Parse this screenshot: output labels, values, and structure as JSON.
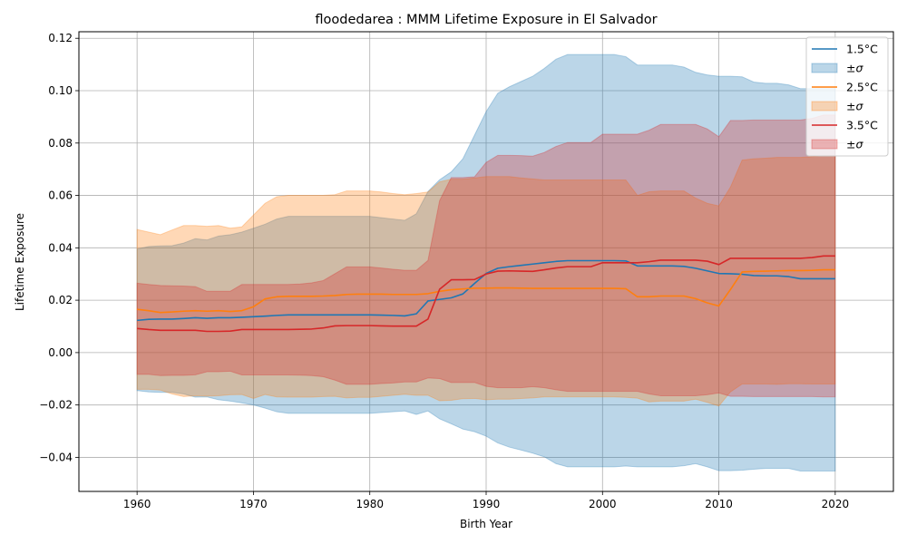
{
  "chart_data": {
    "type": "line",
    "title": "floodedarea : MMM Lifetime Exposure in El Salvador",
    "xlabel": "Birth Year",
    "ylabel": "Lifetime Exposure",
    "xlim": [
      1955,
      2025
    ],
    "ylim": [
      -0.053,
      0.1225
    ],
    "xticks": [
      1960,
      1970,
      1980,
      1990,
      2000,
      2010,
      2020
    ],
    "yticks": [
      -0.04,
      -0.02,
      0.0,
      0.02,
      0.04,
      0.06,
      0.08,
      0.1,
      0.12
    ],
    "ytick_labels": [
      "−0.04",
      "−0.02",
      "0.00",
      "0.02",
      "0.04",
      "0.06",
      "0.08",
      "0.10",
      "0.12"
    ],
    "grid": true,
    "legend_position": "top-right",
    "x": [
      1960,
      1961,
      1962,
      1963,
      1964,
      1965,
      1966,
      1967,
      1968,
      1969,
      1970,
      1971,
      1972,
      1973,
      1974,
      1975,
      1976,
      1977,
      1978,
      1979,
      1980,
      1981,
      1982,
      1983,
      1984,
      1985,
      1986,
      1987,
      1988,
      1989,
      1990,
      1991,
      1992,
      1993,
      1994,
      1995,
      1996,
      1997,
      1998,
      1999,
      2000,
      2001,
      2002,
      2003,
      2004,
      2005,
      2006,
      2007,
      2008,
      2009,
      2010,
      2011,
      2012,
      2013,
      2014,
      2015,
      2016,
      2017,
      2018,
      2019,
      2020
    ],
    "series": [
      {
        "name": "1.5°C",
        "band_name": "±σ",
        "color": "#1f77b4",
        "band_color": "#1f77b4",
        "mean": [
          0.0123,
          0.0127,
          0.0128,
          0.0128,
          0.013,
          0.0133,
          0.0131,
          0.0133,
          0.0133,
          0.0135,
          0.0137,
          0.0139,
          0.0142,
          0.0144,
          0.0144,
          0.0144,
          0.0144,
          0.0144,
          0.0144,
          0.0144,
          0.0144,
          0.0143,
          0.0142,
          0.014,
          0.0148,
          0.0197,
          0.0203,
          0.0209,
          0.0224,
          0.0264,
          0.0302,
          0.0322,
          0.0328,
          0.0333,
          0.0338,
          0.0343,
          0.0348,
          0.0351,
          0.0351,
          0.0351,
          0.0351,
          0.0351,
          0.035,
          0.0331,
          0.0331,
          0.0331,
          0.0331,
          0.0329,
          0.0322,
          0.0312,
          0.0302,
          0.0301,
          0.0299,
          0.0294,
          0.0293,
          0.0293,
          0.029,
          0.0282,
          0.0282,
          0.0282,
          0.0282
        ],
        "upper": [
          0.0395,
          0.0405,
          0.0407,
          0.0408,
          0.0418,
          0.0435,
          0.043,
          0.0445,
          0.045,
          0.046,
          0.0475,
          0.049,
          0.051,
          0.052,
          0.052,
          0.052,
          0.052,
          0.052,
          0.052,
          0.052,
          0.052,
          0.0515,
          0.051,
          0.0505,
          0.053,
          0.0615,
          0.066,
          0.069,
          0.074,
          0.083,
          0.092,
          0.099,
          0.1015,
          0.1035,
          0.1055,
          0.1085,
          0.112,
          0.1138,
          0.1138,
          0.1138,
          0.1138,
          0.1138,
          0.113,
          0.1098,
          0.1098,
          0.1098,
          0.1098,
          0.109,
          0.107,
          0.106,
          0.1055,
          0.1055,
          0.1053,
          0.1033,
          0.1028,
          0.1028,
          0.1022,
          0.1008,
          0.1008,
          0.1008,
          0.1008
        ],
        "lower": [
          -0.0145,
          -0.015,
          -0.0152,
          -0.0152,
          -0.0158,
          -0.017,
          -0.0169,
          -0.018,
          -0.0185,
          -0.0192,
          -0.02,
          -0.0212,
          -0.0226,
          -0.0232,
          -0.0232,
          -0.0232,
          -0.0232,
          -0.0232,
          -0.0232,
          -0.0232,
          -0.0232,
          -0.0229,
          -0.0226,
          -0.0223,
          -0.0236,
          -0.0223,
          -0.0253,
          -0.0272,
          -0.0292,
          -0.0302,
          -0.0319,
          -0.0345,
          -0.0361,
          -0.0372,
          -0.0384,
          -0.0398,
          -0.0424,
          -0.0436,
          -0.0436,
          -0.0436,
          -0.0436,
          -0.0436,
          -0.0433,
          -0.0436,
          -0.0436,
          -0.0436,
          -0.0436,
          -0.0432,
          -0.0424,
          -0.0436,
          -0.0451,
          -0.0451,
          -0.0449,
          -0.0445,
          -0.0442,
          -0.0442,
          -0.0442,
          -0.0452,
          -0.0452,
          -0.0452,
          -0.0452
        ]
      },
      {
        "name": "2.5°C",
        "band_name": "±σ",
        "color": "#ff7f0e",
        "band_color": "#ff7f0e",
        "mean": [
          0.0165,
          0.016,
          0.0153,
          0.0155,
          0.0158,
          0.016,
          0.0158,
          0.016,
          0.0157,
          0.016,
          0.0175,
          0.0205,
          0.0213,
          0.0215,
          0.0215,
          0.0215,
          0.0216,
          0.0218,
          0.0222,
          0.0223,
          0.0223,
          0.0223,
          0.0222,
          0.0222,
          0.0222,
          0.0225,
          0.0234,
          0.024,
          0.0243,
          0.0246,
          0.0246,
          0.0247,
          0.0247,
          0.0246,
          0.0245,
          0.0245,
          0.0245,
          0.0245,
          0.0245,
          0.0245,
          0.0245,
          0.0245,
          0.0244,
          0.0213,
          0.0213,
          0.0216,
          0.0216,
          0.0216,
          0.0206,
          0.019,
          0.0178,
          0.0241,
          0.0308,
          0.031,
          0.0311,
          0.0312,
          0.0313,
          0.0313,
          0.0314,
          0.0316,
          0.0316
        ],
        "upper": [
          0.047,
          0.046,
          0.045,
          0.0468,
          0.0485,
          0.0485,
          0.0482,
          0.0485,
          0.0475,
          0.048,
          0.0525,
          0.057,
          0.0595,
          0.06,
          0.06,
          0.06,
          0.06,
          0.0603,
          0.0617,
          0.0617,
          0.0617,
          0.0613,
          0.0607,
          0.0603,
          0.0607,
          0.0613,
          0.0652,
          0.0662,
          0.0662,
          0.0667,
          0.0672,
          0.0672,
          0.0672,
          0.0667,
          0.0663,
          0.0659,
          0.0659,
          0.0659,
          0.0659,
          0.0659,
          0.0659,
          0.0659,
          0.0659,
          0.06,
          0.0614,
          0.0617,
          0.0617,
          0.0617,
          0.059,
          0.057,
          0.056,
          0.0632,
          0.0735,
          0.074,
          0.0742,
          0.0745,
          0.0745,
          0.0745,
          0.0748,
          0.0752,
          0.0752
        ],
        "lower": [
          -0.014,
          -0.014,
          -0.0143,
          -0.0158,
          -0.0168,
          -0.0165,
          -0.0166,
          -0.0165,
          -0.0161,
          -0.016,
          -0.0175,
          -0.016,
          -0.0169,
          -0.017,
          -0.017,
          -0.017,
          -0.0168,
          -0.0167,
          -0.0173,
          -0.0171,
          -0.0171,
          -0.0167,
          -0.0163,
          -0.0159,
          -0.0163,
          -0.0163,
          -0.0184,
          -0.0182,
          -0.0176,
          -0.0175,
          -0.018,
          -0.0178,
          -0.0178,
          -0.0175,
          -0.0173,
          -0.0169,
          -0.0169,
          -0.0169,
          -0.0169,
          -0.0169,
          -0.0169,
          -0.0169,
          -0.0171,
          -0.0174,
          -0.0188,
          -0.0185,
          -0.0185,
          -0.0185,
          -0.0178,
          -0.019,
          -0.0204,
          -0.015,
          -0.012,
          -0.012,
          -0.012,
          -0.0121,
          -0.0119,
          -0.0119,
          -0.012,
          -0.012,
          -0.012
        ]
      },
      {
        "name": "3.5°C",
        "band_name": "±σ",
        "color": "#d62728",
        "band_color": "#d62728",
        "mean": [
          0.0092,
          0.0088,
          0.0085,
          0.0085,
          0.0085,
          0.0085,
          0.0081,
          0.0081,
          0.0082,
          0.0088,
          0.0088,
          0.0088,
          0.0088,
          0.0088,
          0.0089,
          0.009,
          0.0094,
          0.0102,
          0.0103,
          0.0103,
          0.0103,
          0.0102,
          0.0101,
          0.0101,
          0.0101,
          0.0128,
          0.0242,
          0.0278,
          0.0278,
          0.0279,
          0.03,
          0.0311,
          0.0312,
          0.0311,
          0.031,
          0.0316,
          0.0323,
          0.0328,
          0.0328,
          0.0328,
          0.0343,
          0.0343,
          0.0343,
          0.0343,
          0.0347,
          0.0353,
          0.0353,
          0.0353,
          0.0353,
          0.0349,
          0.0336,
          0.036,
          0.036,
          0.036,
          0.036,
          0.036,
          0.036,
          0.036,
          0.0363,
          0.0369,
          0.0369
        ],
        "upper": [
          0.0265,
          0.026,
          0.0256,
          0.0255,
          0.0254,
          0.0252,
          0.0234,
          0.0234,
          0.0234,
          0.026,
          0.026,
          0.026,
          0.026,
          0.026,
          0.0262,
          0.0266,
          0.0275,
          0.0301,
          0.0327,
          0.0327,
          0.0327,
          0.0323,
          0.0318,
          0.0314,
          0.0314,
          0.0352,
          0.058,
          0.0668,
          0.0668,
          0.0671,
          0.0726,
          0.0753,
          0.0753,
          0.0752,
          0.075,
          0.0764,
          0.0787,
          0.0802,
          0.0802,
          0.0802,
          0.0834,
          0.0834,
          0.0834,
          0.0834,
          0.0849,
          0.0871,
          0.0871,
          0.0871,
          0.0871,
          0.0854,
          0.0824,
          0.0886,
          0.0886,
          0.0888,
          0.0888,
          0.0888,
          0.0888,
          0.0888,
          0.0894,
          0.0907,
          0.0907
        ],
        "lower": [
          -0.0083,
          -0.0083,
          -0.0088,
          -0.0087,
          -0.0087,
          -0.0085,
          -0.0073,
          -0.0073,
          -0.0071,
          -0.0085,
          -0.0085,
          -0.0085,
          -0.0085,
          -0.0085,
          -0.0086,
          -0.0088,
          -0.0092,
          -0.0105,
          -0.0121,
          -0.0121,
          -0.0121,
          -0.0118,
          -0.0116,
          -0.0112,
          -0.0112,
          -0.0097,
          -0.0099,
          -0.0114,
          -0.0114,
          -0.0114,
          -0.0129,
          -0.0134,
          -0.0134,
          -0.0134,
          -0.013,
          -0.0134,
          -0.0142,
          -0.0148,
          -0.0148,
          -0.0148,
          -0.0148,
          -0.0148,
          -0.0148,
          -0.0148,
          -0.0158,
          -0.0165,
          -0.0165,
          -0.0165,
          -0.0165,
          -0.0161,
          -0.0154,
          -0.0167,
          -0.0167,
          -0.0168,
          -0.0168,
          -0.0168,
          -0.0168,
          -0.0168,
          -0.0168,
          -0.0169,
          -0.0169
        ]
      }
    ]
  }
}
